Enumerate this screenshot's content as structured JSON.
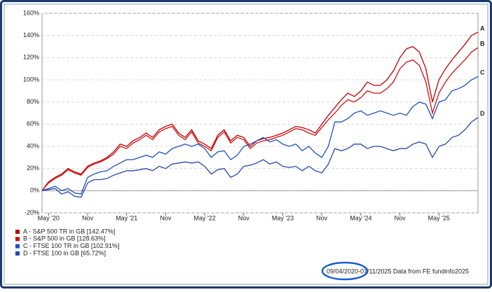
{
  "chart_data": {
    "type": "line",
    "categories": [
      null,
      "May '20",
      null,
      null,
      null,
      null,
      null,
      "Nov",
      null,
      null,
      null,
      null,
      null,
      "May '21",
      null,
      null,
      null,
      null,
      null,
      "Nov",
      null,
      null,
      null,
      null,
      null,
      "May '22",
      null,
      null,
      null,
      null,
      null,
      "Nov",
      null,
      null,
      null,
      null,
      null,
      "May '23",
      null,
      null,
      null,
      null,
      null,
      "Nov",
      null,
      null,
      null,
      null,
      null,
      "May '24",
      null,
      null,
      null,
      null,
      null,
      "Nov",
      null,
      null,
      null,
      null,
      null,
      "May '25",
      null,
      null,
      null,
      null,
      null,
      null
    ],
    "series": [
      {
        "name": "A - S&P 500 TR in GB [142.47%]",
        "end_label": "A",
        "color": "#c00000",
        "values": [
          0,
          8,
          12,
          15,
          20,
          17,
          15,
          22,
          25,
          27,
          30,
          35,
          42,
          40,
          45,
          48,
          52,
          48,
          55,
          58,
          60,
          52,
          48,
          55,
          45,
          42,
          38,
          50,
          55,
          45,
          50,
          48,
          40,
          45,
          47,
          48,
          50,
          52,
          55,
          58,
          57,
          55,
          52,
          60,
          68,
          75,
          82,
          88,
          85,
          90,
          98,
          95,
          95,
          100,
          108,
          120,
          128,
          130,
          125,
          110,
          80,
          100,
          110,
          118,
          125,
          132,
          140,
          143
        ]
      },
      {
        "name": "B - S&P 500 in GB [128.63%]",
        "end_label": "B",
        "color": "#d01010",
        "values": [
          0,
          7,
          11,
          14,
          19,
          16,
          14,
          21,
          24,
          26,
          29,
          33,
          40,
          38,
          43,
          46,
          50,
          46,
          53,
          56,
          58,
          50,
          46,
          53,
          43,
          40,
          36,
          48,
          53,
          43,
          48,
          46,
          38,
          43,
          45,
          46,
          48,
          50,
          53,
          56,
          55,
          52,
          50,
          57,
          64,
          70,
          77,
          82,
          80,
          84,
          90,
          88,
          88,
          92,
          98,
          110,
          116,
          118,
          113,
          98,
          70,
          88,
          98,
          106,
          112,
          118,
          125,
          129
        ]
      },
      {
        "name": "C - FTSE 100 TR in GB [102.91%]",
        "end_label": "C",
        "color": "#1f4fc0",
        "values": [
          0,
          2,
          4,
          0,
          2,
          -2,
          -3,
          12,
          15,
          17,
          18,
          22,
          25,
          28,
          28,
          30,
          32,
          30,
          35,
          33,
          38,
          40,
          42,
          40,
          42,
          38,
          30,
          35,
          36,
          28,
          32,
          40,
          42,
          45,
          48,
          44,
          46,
          42,
          40,
          42,
          36,
          40,
          34,
          30,
          40,
          62,
          62,
          65,
          70,
          72,
          68,
          70,
          72,
          70,
          68,
          70,
          68,
          76,
          80,
          78,
          65,
          80,
          82,
          90,
          92,
          95,
          100,
          103
        ]
      },
      {
        "name": "D - FTSE 100 in GB [65.72%]",
        "end_label": "D",
        "color": "#2a48a8",
        "values": [
          0,
          1,
          2,
          -3,
          -1,
          -5,
          -6,
          7,
          10,
          10,
          11,
          14,
          16,
          18,
          18,
          19,
          20,
          18,
          22,
          20,
          24,
          25,
          26,
          25,
          26,
          22,
          15,
          19,
          20,
          12,
          15,
          22,
          23,
          25,
          28,
          24,
          26,
          22,
          21,
          22,
          18,
          22,
          18,
          16,
          24,
          38,
          36,
          38,
          42,
          42,
          38,
          40,
          40,
          38,
          36,
          38,
          38,
          42,
          44,
          42,
          30,
          40,
          42,
          48,
          50,
          55,
          62,
          66
        ]
      }
    ],
    "ylim": [
      -20,
      160
    ],
    "yticks": [
      {
        "value": -20,
        "label": "-20%"
      },
      {
        "value": 0,
        "label": "0%"
      },
      {
        "value": 20,
        "label": "20%"
      },
      {
        "value": 40,
        "label": "40%"
      },
      {
        "value": 60,
        "label": "60%"
      },
      {
        "value": 80,
        "label": "80%"
      },
      {
        "value": 100,
        "label": "100%"
      },
      {
        "value": 120,
        "label": "120%"
      },
      {
        "value": 140,
        "label": "140%"
      },
      {
        "value": 160,
        "label": "160%"
      }
    ],
    "grid": true,
    "footer": "09/04/2020-07/11/2025 Data from FE fundinfo2025"
  }
}
